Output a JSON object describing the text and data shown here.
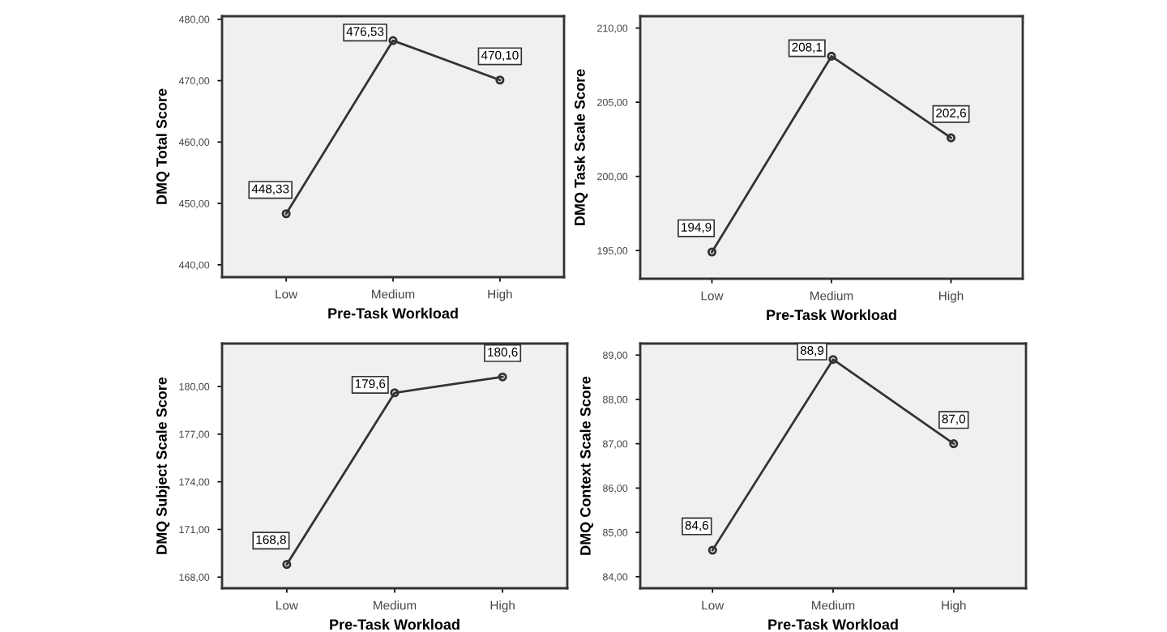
{
  "chart_data": [
    {
      "type": "line",
      "categories": [
        "Low",
        "Medium",
        "High"
      ],
      "xlabel": "Pre-Task Workload",
      "ylabel": "DMQ Total Score",
      "marker": "circle",
      "color": "#333333",
      "values": [
        448.33,
        476.53,
        470.1
      ],
      "value_labels": [
        "448,33",
        "476,53",
        "470,10"
      ],
      "ylim": [
        438,
        480.5
      ],
      "yticks": [
        {
          "value": 440,
          "label": "440,00"
        },
        {
          "value": 450,
          "label": "450,00"
        },
        {
          "value": 460,
          "label": "460,00"
        },
        {
          "value": 470,
          "label": "470,00"
        },
        {
          "value": 480,
          "label": "480,00"
        }
      ]
    },
    {
      "type": "line",
      "categories": [
        "Low",
        "Medium",
        "High"
      ],
      "xlabel": "Pre-Task Workload",
      "ylabel": "DMQ Task Scale Score",
      "marker": "circle",
      "color": "#333333",
      "values": [
        194.9,
        208.1,
        202.6
      ],
      "value_labels": [
        "194,9",
        "208,1",
        "202,6"
      ],
      "ylim": [
        193.1,
        210.8
      ],
      "yticks": [
        {
          "value": 195,
          "label": "195,00"
        },
        {
          "value": 200,
          "label": "200,00"
        },
        {
          "value": 205,
          "label": "205,00"
        },
        {
          "value": 210,
          "label": "210,00"
        }
      ]
    },
    {
      "type": "line",
      "categories": [
        "Low",
        "Medium",
        "High"
      ],
      "xlabel": "Pre-Task Workload",
      "ylabel": "DMQ Subject Scale Score",
      "marker": "circle",
      "color": "#333333",
      "values": [
        168.8,
        179.6,
        180.6
      ],
      "value_labels": [
        "168,8",
        "179,6",
        "180,6"
      ],
      "ylim": [
        167.3,
        182.7
      ],
      "yticks": [
        {
          "value": 168,
          "label": "168,00"
        },
        {
          "value": 171,
          "label": "171,00"
        },
        {
          "value": 174,
          "label": "174,00"
        },
        {
          "value": 177,
          "label": "177,00"
        },
        {
          "value": 180,
          "label": "180,00"
        }
      ]
    },
    {
      "type": "line",
      "categories": [
        "Low",
        "Medium",
        "High"
      ],
      "xlabel": "Pre-Task Workload",
      "ylabel": "DMQ Context Scale Score",
      "marker": "circle",
      "color": "#333333",
      "values": [
        84.6,
        88.9,
        87.0
      ],
      "value_labels": [
        "84,6",
        "88,9",
        "87,0"
      ],
      "ylim": [
        83.74,
        89.26
      ],
      "yticks": [
        {
          "value": 84,
          "label": "84,00"
        },
        {
          "value": 85,
          "label": "85,00"
        },
        {
          "value": 86,
          "label": "86,00"
        },
        {
          "value": 87,
          "label": "87,00"
        },
        {
          "value": 88,
          "label": "88,00"
        },
        {
          "value": 89,
          "label": "89,00"
        }
      ]
    }
  ]
}
